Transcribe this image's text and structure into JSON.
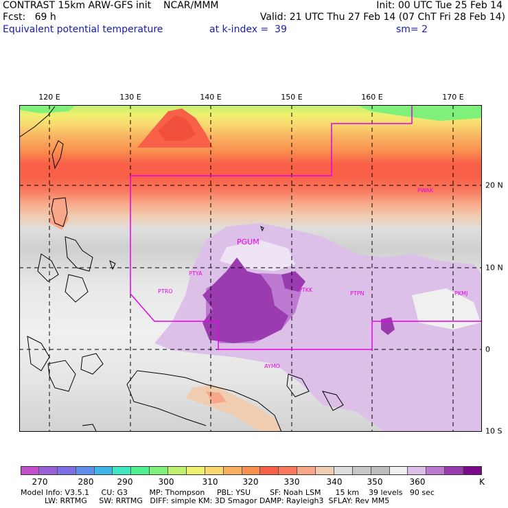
{
  "header": {
    "line1_left": "CONTRAST 15km ARW-GFS init    NCAR/MMM",
    "line1_right": "Init: 00 UTC Tue 25 Feb 14",
    "line2_left": "Fcst:   69 h",
    "line2_right": "Valid: 21 UTC Thu 27 Feb 14 (07 ChT Fri 28 Feb 14)",
    "line3_left": "Equivalent potential temperature",
    "line3_mid": "at k-index =  39",
    "line3_right": "sm= 2"
  },
  "map": {
    "longitude_labels": [
      "120 E",
      "130 E",
      "140 E",
      "150 E",
      "160 E",
      "170 E"
    ],
    "latitude_labels": [
      "20 N",
      "10 N",
      "0",
      "10 S"
    ],
    "station_labels": [
      "PGUM",
      "PTYA",
      "PTRO",
      "PTKK",
      "PTPN",
      "PKMJ",
      "PWAK",
      "AYMO"
    ],
    "boundary_color": "#e600e6"
  },
  "colorbar": {
    "colors": [
      "#c24ecc",
      "#9a5fd6",
      "#7f6fe6",
      "#5f8fea",
      "#3fb6ea",
      "#3fe6c0",
      "#4ff090",
      "#7ff07a",
      "#c0f070",
      "#f0f070",
      "#f8d870",
      "#f8b060",
      "#f89050",
      "#f86048",
      "#f8785c",
      "#f8a888",
      "#f0ccb0",
      "#dedede",
      "#c8c8c8",
      "#bdbdbd",
      "#f0f0f0",
      "#dcc0e8",
      "#be7ad2",
      "#9a3cb0",
      "#7a0a8a"
    ],
    "tick_labels": [
      "270",
      "280",
      "290",
      "300",
      "310",
      "320",
      "330",
      "340",
      "350",
      "360"
    ],
    "unit": "K"
  },
  "footer": {
    "line1": "Model Info: V3.5.1     CU: G3         MP: Thompson     PBL: YSU        SF: Noah LSM      15 km    39 levels   90 sec",
    "line2": "          LW: RRTMG     SW: RRTMG   DIFF: simple KM: 3D Smagor DAMP: Rayleigh3  SFLAY: Rev MM5"
  }
}
